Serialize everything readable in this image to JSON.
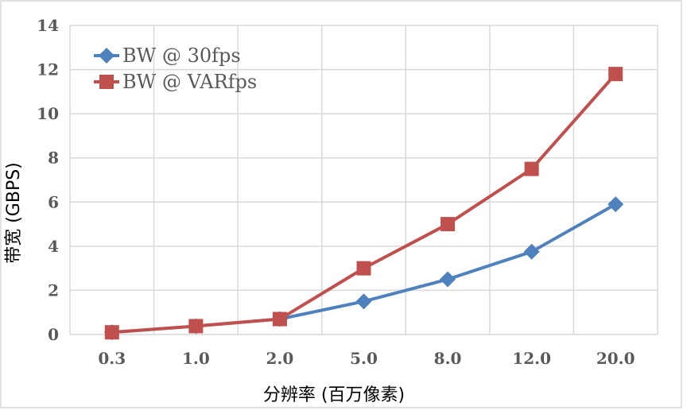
{
  "chart_data": {
    "type": "line",
    "categories": [
      "0.3",
      "1.0",
      "2.0",
      "5.0",
      "8.0",
      "12.0",
      "20.0"
    ],
    "series": [
      {
        "name": "BW @ 30fps",
        "color": "#4f81bd",
        "marker": "diamond",
        "values": [
          0.1,
          0.38,
          0.7,
          1.5,
          2.5,
          3.75,
          5.9
        ]
      },
      {
        "name": "BW @ VARfps",
        "color": "#c0504d",
        "marker": "square",
        "values": [
          0.1,
          0.38,
          0.7,
          3.0,
          5.0,
          7.5,
          11.8
        ]
      }
    ],
    "title": "",
    "xlabel": "分辨率 (百万像素)",
    "ylabel": "带宽 (GBPS)",
    "ylim": [
      0,
      14
    ],
    "yticks": [
      "0",
      "2",
      "4",
      "6",
      "8",
      "10",
      "12",
      "14"
    ],
    "grid": true,
    "legend": "top-left"
  }
}
